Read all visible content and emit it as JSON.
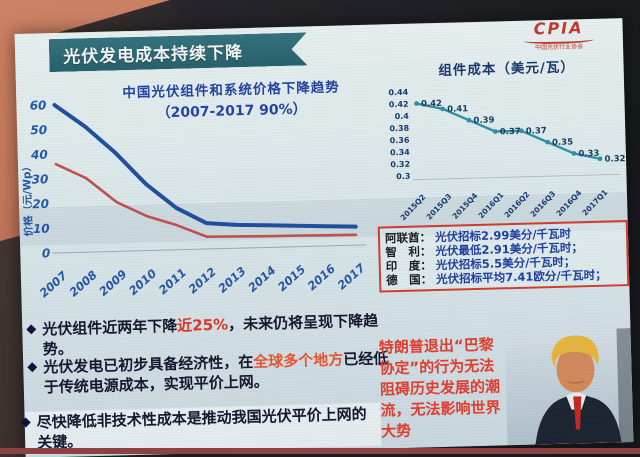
{
  "slide": {
    "banner": "光伏发电成本持续下降",
    "logo": {
      "text": "CPIA",
      "subtext": "中国光伏行业协会"
    },
    "colors": {
      "banner_teal": "#2e6a74",
      "accent_red": "#cf3b31",
      "system_line_blue": "#1f4e9c",
      "module_line_red": "#c0504d",
      "module_cost_teal": "#2f8fa8"
    }
  },
  "chart_data": [
    {
      "type": "line",
      "title": "中国光伏组件和系统价格下降趋势",
      "subtitle": "（2007-2017  90%）",
      "ylabel": "价格（元/Wp）",
      "categories": [
        "2007",
        "2008",
        "2009",
        "2010",
        "2011",
        "2012",
        "2013",
        "2014",
        "2015",
        "2016",
        "2017"
      ],
      "series": [
        {
          "name": "系统价格",
          "color": "#1f4e9c",
          "width": 4,
          "values": [
            60,
            51,
            40,
            27,
            17,
            10.5,
            9.5,
            9,
            8.5,
            8,
            7.5
          ]
        },
        {
          "name": "组件价格",
          "color": "#c0504d",
          "width": 2.6,
          "values": [
            36,
            30,
            20,
            14,
            10,
            5,
            4.8,
            4.6,
            4.5,
            4.3,
            4.2
          ]
        }
      ],
      "ylim": [
        0,
        60
      ],
      "yticks": [
        0,
        10,
        20,
        30,
        40,
        50,
        60
      ],
      "grid": false,
      "legend": "none"
    },
    {
      "type": "line",
      "title": "组件成本（美元/瓦）",
      "categories": [
        "2015Q2",
        "2015Q3",
        "2015Q4",
        "2016Q1",
        "2016Q2",
        "2016Q3",
        "2016Q4",
        "2017Q1"
      ],
      "values": [
        0.42,
        0.41,
        0.39,
        0.37,
        0.37,
        0.35,
        0.33,
        0.32
      ],
      "point_labels": [
        "0.42",
        "0.41",
        "0.39",
        "0.37",
        "0.37",
        "0.35",
        "0.33",
        "0.32"
      ],
      "color": "#2f8fa8",
      "ylim": [
        0.3,
        0.44
      ],
      "yticks": [
        0.44,
        0.42,
        0.4,
        0.38,
        0.36,
        0.34,
        0.32,
        0.3
      ],
      "grid": false,
      "legend": "none"
    }
  ],
  "bids": {
    "rows": [
      {
        "country": "阿联酋：",
        "desc": "光伏招标2.99美分/千瓦时"
      },
      {
        "country": "智　利：",
        "desc": "光伏最低2.91美分/千瓦时；"
      },
      {
        "country": "印　度：",
        "desc": "光伏招标5.5美分/千瓦时；"
      },
      {
        "country": "德　国：",
        "desc": "光伏招标平均7.41欧分/千瓦时；"
      }
    ]
  },
  "bullets": {
    "diamond": "◆",
    "b1": {
      "pre": "光伏组件近两年下降",
      "highlight": "近25%",
      "post": "，未来仍将呈现下降趋势。"
    },
    "b2": {
      "pre": "光伏发电已初步具备经济性，在",
      "highlight": "全球多个地方",
      "post": "已经低于传统电源成本，实现平价上网。"
    },
    "b3": {
      "text": "尽快降低非技术性成本是推动我国光伏平价上网的关键。"
    }
  },
  "trump": {
    "text": "特朗普退出“巴黎协定”的行为无法阻碍历史发展的潮流，无法影响世界大势"
  }
}
